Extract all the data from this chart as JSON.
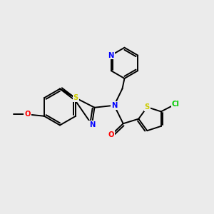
{
  "background_color": "#ebebeb",
  "bond_color": "#000000",
  "atom_colors": {
    "N": "#0000ff",
    "O": "#ff0000",
    "S_thz": "#cccc00",
    "S_thio": "#cccc00",
    "Cl": "#00cc00",
    "C": "#000000"
  },
  "figsize": [
    3.0,
    3.0
  ],
  "dpi": 100,
  "lw": 1.4,
  "fs": 7.2
}
